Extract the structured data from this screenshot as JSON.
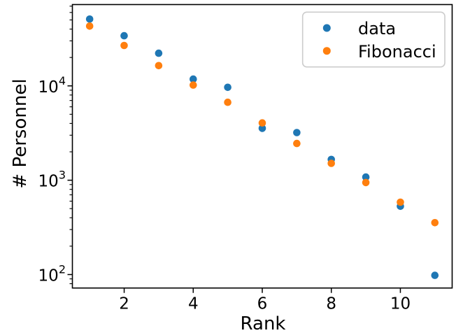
{
  "figure": {
    "background": "#ffffff",
    "axis_color": "#000000",
    "legend_border_color": "#cccccc"
  },
  "chart_data": {
    "type": "scatter",
    "title": "",
    "xlabel": "Rank",
    "ylabel": "# Personnel",
    "yscale": "log",
    "grid": false,
    "xlim": [
      0.5,
      11.5
    ],
    "ylim": [
      72,
      72800
    ],
    "xticks": [
      2,
      4,
      6,
      8,
      10
    ],
    "ytick_exponents": [
      2,
      3,
      4
    ],
    "legend": {
      "position": "upper right",
      "entries": [
        "data",
        "Fibonacci"
      ]
    },
    "x": [
      1,
      2,
      3,
      4,
      5,
      6,
      7,
      8,
      9,
      10,
      11
    ],
    "series": [
      {
        "name": "data",
        "color": "#1f77b4",
        "marker": "circle",
        "values": [
          51000,
          34000,
          22200,
          11800,
          9650,
          3550,
          3200,
          1660,
          1080,
          530,
          98
        ]
      },
      {
        "name": "Fibonacci",
        "color": "#ff7f0e",
        "marker": "circle",
        "values": [
          43000,
          26800,
          16400,
          10200,
          6700,
          4050,
          2450,
          1510,
          945,
          585,
          355
        ]
      }
    ]
  }
}
